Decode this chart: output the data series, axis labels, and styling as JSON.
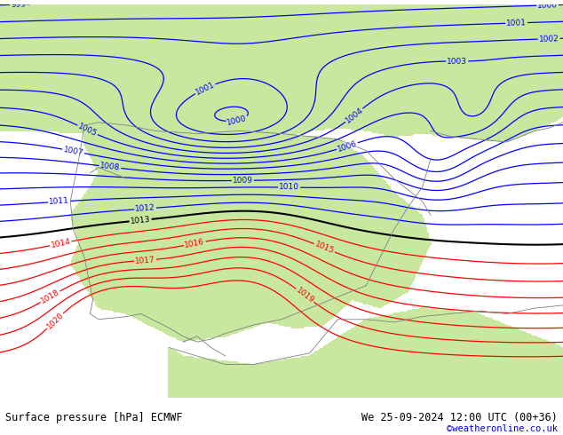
{
  "title_left": "Surface pressure [hPa] ECMWF",
  "title_right": "We 25-09-2024 12:00 UTC (00+36)",
  "credit": "©weatheronline.co.uk",
  "credit_color": "#0000cc",
  "bg_color": "#c8c8c8",
  "land_color": "#c8e8a0",
  "sea_color": "#c8c8c8",
  "isobar_blue_color": "#0000ff",
  "isobar_red_color": "#ff0000",
  "isobar_black_color": "#000000",
  "label_fontsize": 6.5,
  "footer_fontsize": 8.5,
  "footer_bg": "#ffffff",
  "blue_levels": [
    999,
    1000,
    1001,
    1002,
    1003,
    1004,
    1005,
    1006,
    1007,
    1008,
    1009,
    1010,
    1011,
    1012
  ],
  "black_levels": [
    1013
  ],
  "red_levels": [
    1014,
    1015,
    1016,
    1017,
    1018,
    1019,
    1020
  ]
}
